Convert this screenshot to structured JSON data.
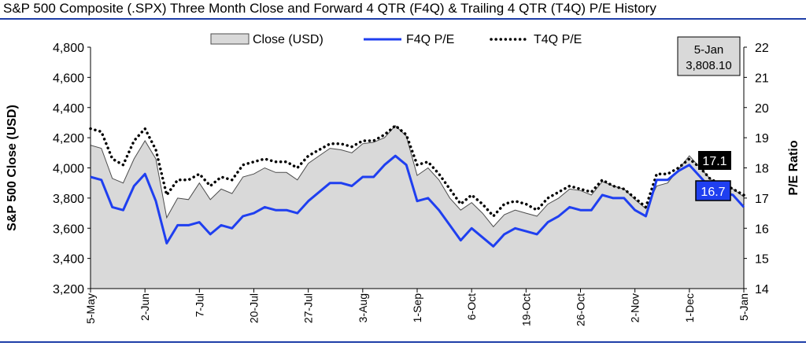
{
  "chart_data": {
    "type": "area",
    "title": "S&P 500 Composite (.SPX) Three Month Close and Forward 4 QTR (F4Q) & Trailing 4 QTR (T4Q) P/E History",
    "ylabel": "S&P 500 Close (USD)",
    "y2label": "P/E Ratio",
    "ylim": [
      3200,
      4800
    ],
    "y2lim": [
      14,
      22
    ],
    "yticks": [
      "3,200",
      "3,400",
      "3,600",
      "3,800",
      "4,000",
      "4,200",
      "4,400",
      "4,600",
      "4,800"
    ],
    "y2ticks": [
      "14",
      "15",
      "16",
      "17",
      "18",
      "19",
      "20",
      "21",
      "22"
    ],
    "xticklabels": [
      {
        "index": 0,
        "label": "5-May"
      },
      {
        "index": 5,
        "label": "2-Jun"
      },
      {
        "index": 10,
        "label": "7-Jul"
      },
      {
        "index": 15,
        "label": "20-Jul"
      },
      {
        "index": 20,
        "label": "27-Jul"
      },
      {
        "index": 25,
        "label": "3-Aug"
      },
      {
        "index": 30,
        "label": "1-Sep"
      },
      {
        "index": 35,
        "label": "6-Oct"
      },
      {
        "index": 40,
        "label": "19-Oct"
      },
      {
        "index": 45,
        "label": "26-Oct"
      },
      {
        "index": 50,
        "label": "2-Nov"
      },
      {
        "index": 55,
        "label": "1-Dec"
      },
      {
        "index": 60,
        "label": "5-Jan"
      }
    ],
    "legend_position": "top-center",
    "grid": false,
    "series": [
      {
        "name": "Close (USD)",
        "type": "area",
        "axis": "left",
        "color": "#d9d9d9",
        "values": [
          4150,
          4130,
          3930,
          3900,
          4060,
          4180,
          4060,
          3670,
          3800,
          3790,
          3900,
          3790,
          3860,
          3830,
          3940,
          3960,
          4000,
          3970,
          3970,
          3920,
          4030,
          4080,
          4130,
          4120,
          4100,
          4160,
          4170,
          4200,
          4280,
          4210,
          3950,
          4000,
          3920,
          3800,
          3720,
          3770,
          3700,
          3610,
          3690,
          3720,
          3700,
          3680,
          3760,
          3800,
          3860,
          3850,
          3820,
          3910,
          3880,
          3860,
          3790,
          3730,
          3880,
          3900,
          3990,
          4080,
          4000,
          3920,
          3880,
          3860,
          3808.1
        ]
      },
      {
        "name": "F4Q P/E",
        "type": "line",
        "axis": "right",
        "color": "#1f3ff0",
        "values": [
          17.7,
          17.6,
          16.7,
          16.6,
          17.4,
          17.8,
          16.9,
          15.5,
          16.1,
          16.1,
          16.2,
          15.8,
          16.1,
          16.0,
          16.4,
          16.5,
          16.7,
          16.6,
          16.6,
          16.5,
          16.9,
          17.2,
          17.5,
          17.5,
          17.4,
          17.7,
          17.7,
          18.1,
          18.4,
          18.1,
          16.9,
          17.0,
          16.6,
          16.1,
          15.6,
          16.0,
          15.7,
          15.4,
          15.8,
          16.0,
          15.9,
          15.8,
          16.2,
          16.4,
          16.7,
          16.6,
          16.6,
          17.1,
          17.0,
          17.0,
          16.6,
          16.4,
          17.6,
          17.6,
          17.9,
          18.1,
          17.7,
          17.3,
          17.2,
          17.1,
          16.7
        ]
      },
      {
        "name": "T4Q P/E",
        "type": "line",
        "axis": "right",
        "color": "#000000",
        "values": [
          19.3,
          19.2,
          18.3,
          18.1,
          18.9,
          19.3,
          18.6,
          17.1,
          17.6,
          17.6,
          17.8,
          17.4,
          17.7,
          17.6,
          18.1,
          18.2,
          18.3,
          18.2,
          18.2,
          18.0,
          18.4,
          18.6,
          18.8,
          18.8,
          18.7,
          18.9,
          18.9,
          19.1,
          19.4,
          19.1,
          18.1,
          18.2,
          17.8,
          17.3,
          16.8,
          17.1,
          16.8,
          16.4,
          16.8,
          16.9,
          16.8,
          16.6,
          17.0,
          17.2,
          17.4,
          17.3,
          17.2,
          17.6,
          17.4,
          17.3,
          17.0,
          16.7,
          17.8,
          17.8,
          18.0,
          18.3,
          18.0,
          17.6,
          17.5,
          17.3,
          17.1
        ]
      }
    ],
    "annotations": [
      {
        "type": "box",
        "lines": [
          "5-Jan",
          "3,808.10"
        ]
      },
      {
        "type": "label",
        "series": "T4Q P/E",
        "text": "17.1"
      },
      {
        "type": "label",
        "series": "F4Q P/E",
        "text": "16.7"
      }
    ]
  }
}
